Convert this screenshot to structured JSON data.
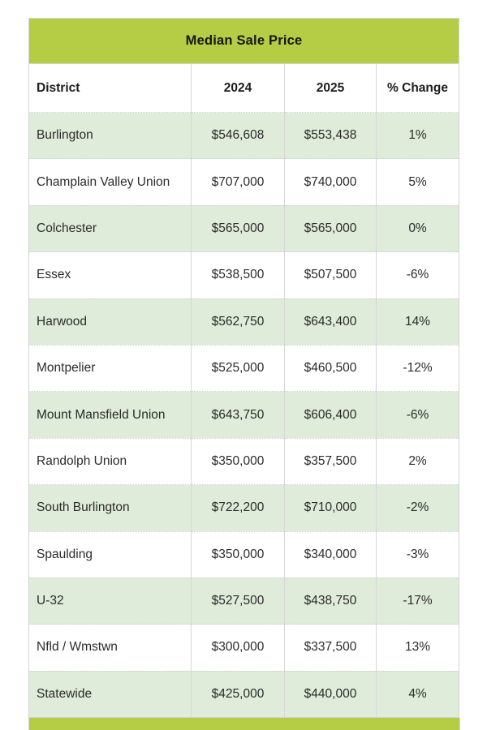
{
  "colors": {
    "accent_green": "#b4cd44",
    "row_green": "#deecd9",
    "row_white": "#ffffff",
    "border_gray": "#d6d6d6",
    "text_dark": "#2b2b2b"
  },
  "chart_data": {
    "type": "table",
    "title": "Median Sale Price",
    "columns": [
      "District",
      "2024",
      "2025",
      "% Change"
    ],
    "rows": [
      [
        "Burlington",
        "$546,608",
        "$553,438",
        "1%"
      ],
      [
        "Champlain Valley Union",
        "$707,000",
        "$740,000",
        "5%"
      ],
      [
        "Colchester",
        "$565,000",
        "$565,000",
        "0%"
      ],
      [
        "Essex",
        "$538,500",
        "$507,500",
        "-6%"
      ],
      [
        "Harwood",
        "$562,750",
        "$643,400",
        "14%"
      ],
      [
        "Montpelier",
        "$525,000",
        "$460,500",
        "-12%"
      ],
      [
        "Mount Mansfield Union",
        "$643,750",
        "$606,400",
        "-6%"
      ],
      [
        "Randolph Union",
        "$350,000",
        "$357,500",
        "2%"
      ],
      [
        "South Burlington",
        "$722,200",
        "$710,000",
        "-2%"
      ],
      [
        "Spaulding",
        "$350,000",
        "$340,000",
        "-3%"
      ],
      [
        "U-32",
        "$527,500",
        "$438,750",
        "-17%"
      ],
      [
        "Nfld / Wmstwn",
        "$300,000",
        "$337,500",
        "13%"
      ],
      [
        "Statewide",
        "$425,000",
        "$440,000",
        "4%"
      ]
    ]
  }
}
